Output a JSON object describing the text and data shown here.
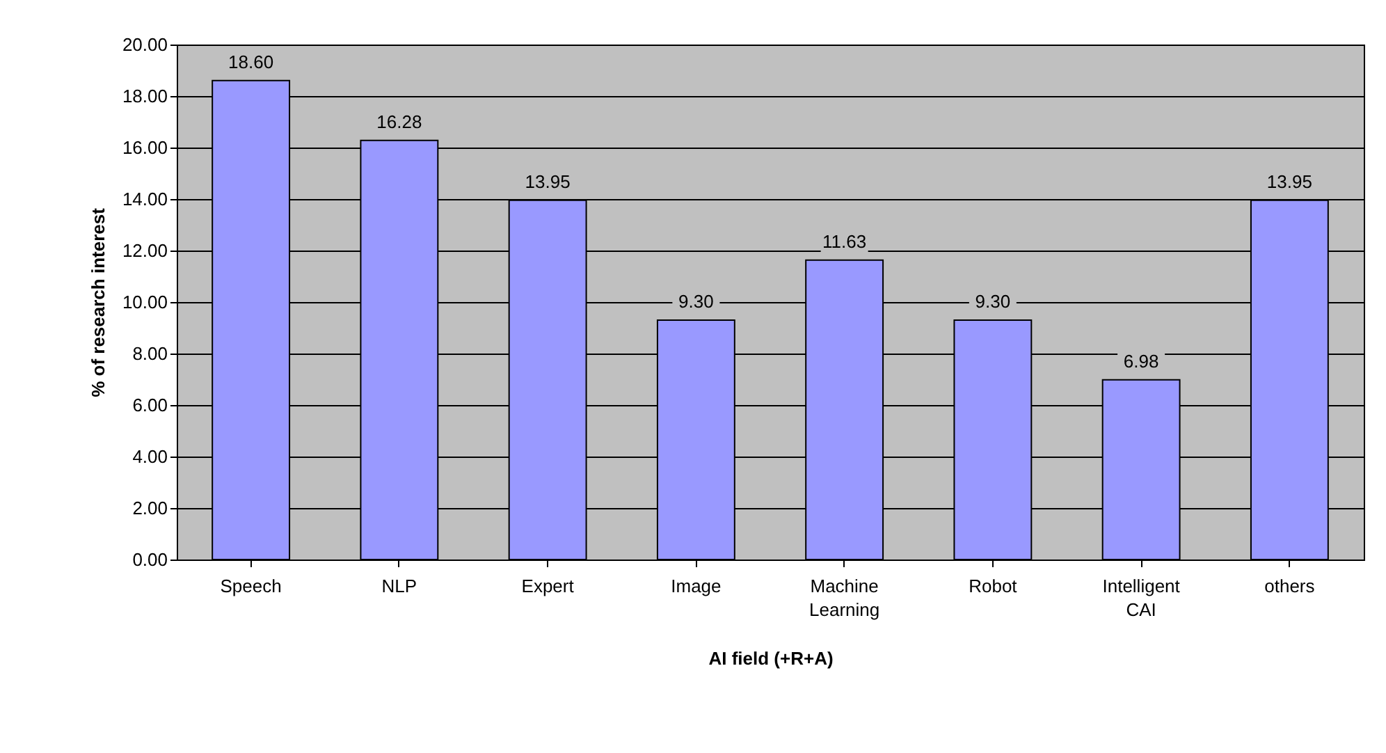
{
  "chart_data": {
    "type": "bar",
    "xlabel": "AI field (+R+A)",
    "ylabel": "% of research interest",
    "categories": [
      "Speech",
      "NLP",
      "Expert",
      "Image",
      "Machine Learning",
      "Robot",
      "Intelligent CAI",
      "others"
    ],
    "values": [
      18.6,
      16.28,
      13.95,
      9.3,
      11.63,
      9.3,
      6.98,
      13.95
    ],
    "value_labels": [
      "18.60",
      "16.28",
      "13.95",
      "9.30",
      "11.63",
      "9.30",
      "6.98",
      "13.95"
    ],
    "color": "#9999ff",
    "ylim": [
      0,
      20
    ],
    "yticks": [
      {
        "value": 0,
        "label": "0.00"
      },
      {
        "value": 2,
        "label": "2.00"
      },
      {
        "value": 4,
        "label": "4.00"
      },
      {
        "value": 6,
        "label": "6.00"
      },
      {
        "value": 8,
        "label": "8.00"
      },
      {
        "value": 10,
        "label": "10.00"
      },
      {
        "value": 12,
        "label": "12.00"
      },
      {
        "value": 14,
        "label": "14.00"
      },
      {
        "value": 16,
        "label": "16.00"
      },
      {
        "value": 18,
        "label": "18.00"
      },
      {
        "value": 20,
        "label": "20.00"
      }
    ],
    "grid": "y"
  }
}
